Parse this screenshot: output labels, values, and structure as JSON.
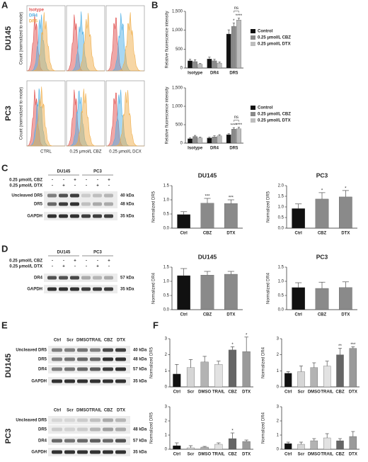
{
  "panel_labels": [
    "A",
    "B",
    "C",
    "D",
    "E",
    "F"
  ],
  "panel_a": {
    "legend": [
      "Isotype",
      "DR4",
      "DR5"
    ],
    "legend_colors": [
      "#e0504f",
      "#4fb0e6",
      "#f0ae4a"
    ],
    "ylabel": "Count (normalized to mode)",
    "conditions": [
      "CTRL",
      "0.25 μmol/L CBZ",
      "0.25 μmol/L DCX"
    ],
    "cell_lines": [
      "DU145",
      "PC3"
    ]
  },
  "panel_c": {
    "treatments": [
      "0.25 μmol/L CBZ",
      "0.25 μmol/L DTX"
    ],
    "signs": [
      [
        "-",
        "-",
        "+",
        "-",
        "-",
        "+"
      ],
      [
        "-",
        "+",
        "-",
        "-",
        "+",
        "-"
      ]
    ],
    "groups": [
      "DU145",
      "PC3"
    ],
    "rows": [
      {
        "label": "Uncleaved DR5",
        "size": "40 kDa"
      },
      {
        "label": "DR5",
        "size": "48 kDa"
      },
      {
        "label": "GAPDH",
        "size": "35 kDa"
      }
    ]
  },
  "panel_d": {
    "treatments": [
      "0.25 μmol/L CBZ",
      "0.25 μmol/L DTX"
    ],
    "signs": [
      [
        "-",
        "-",
        "+",
        "-",
        "-",
        "+"
      ],
      [
        "-",
        "+",
        "-",
        "-",
        "+",
        "-"
      ]
    ],
    "groups": [
      "DU145",
      "PC3"
    ],
    "rows": [
      {
        "label": "DR4",
        "size": "57 kDa"
      },
      {
        "label": "GAPDH",
        "size": "35 kDa"
      }
    ]
  },
  "panel_e": {
    "lanes": [
      "Ctrl",
      "Scr",
      "DMSO",
      "TRAIL",
      "CBZ",
      "DTX"
    ],
    "blots": [
      {
        "cell_line": "DU145",
        "rows": [
          {
            "label": "Uncleaved DR5",
            "size": "40 kDa"
          },
          {
            "label": "DR5",
            "size": "48 kDa"
          },
          {
            "label": "DR4",
            "size": "57 kDa"
          },
          {
            "label": "GAPDH",
            "size": "35 kDa"
          }
        ]
      },
      {
        "cell_line": "PC3",
        "rows": [
          {
            "label": "Uncleaved DR5",
            "size": null
          },
          {
            "label": "DR5",
            "size": "48 kDa"
          },
          {
            "label": "DR4",
            "size": "57 kDa"
          },
          {
            "label": "GAPDH",
            "size": "35 kDa"
          }
        ]
      }
    ]
  },
  "chart_data": [
    {
      "type": "bar",
      "ylabel": "Relative fluorescence intensity",
      "categories": [
        "Isotype",
        "DR4",
        "DR5"
      ],
      "series": [
        {
          "name": "Control",
          "color": "#111111",
          "values": [
            190,
            240,
            900
          ],
          "errors": [
            40,
            50,
            110
          ],
          "significance": [
            null,
            null,
            null
          ]
        },
        {
          "name": "0.25 μmol/L CBZ",
          "color": "#8a8a8a",
          "values": [
            170,
            190,
            1100
          ],
          "errors": [
            50,
            40,
            90
          ],
          "significance": [
            null,
            null,
            "*"
          ]
        },
        {
          "name": "0.25 μmol/L DTX",
          "color": "#bdbdbd",
          "values": [
            100,
            130,
            1270
          ],
          "errors": [
            20,
            30,
            50
          ],
          "significance": [
            null,
            null,
            "****"
          ]
        }
      ],
      "bracket_label": "ns",
      "ylim": [
        0,
        1500
      ],
      "yticks": [
        0,
        500,
        {
          "value": 1000,
          "label": "1,000"
        },
        {
          "value": 1500,
          "label": "1,500"
        }
      ]
    },
    {
      "type": "bar",
      "ylabel": "Relative fluorescence intensity",
      "categories": [
        "Isotype",
        "DR4",
        "DR5"
      ],
      "series": [
        {
          "name": "Control",
          "color": "#111111",
          "values": [
            120,
            140,
            230
          ],
          "errors": [
            20,
            20,
            25
          ],
          "significance": [
            null,
            null,
            null
          ]
        },
        {
          "name": "0.25 μmol/L CBZ",
          "color": "#8a8a8a",
          "values": [
            180,
            170,
            380
          ],
          "errors": [
            30,
            30,
            40
          ],
          "significance": [
            null,
            null,
            "****"
          ]
        },
        {
          "name": "0.25 μmol/L DTX",
          "color": "#bdbdbd",
          "values": [
            140,
            200,
            390
          ],
          "errors": [
            20,
            30,
            40
          ],
          "significance": [
            null,
            null,
            "****"
          ]
        }
      ],
      "bracket_label": "ns",
      "ylim": [
        0,
        1500
      ],
      "yticks": [
        0,
        500,
        {
          "value": 1000,
          "label": "1,000"
        },
        {
          "value": 1500,
          "label": "1,500"
        }
      ]
    },
    {
      "type": "bar",
      "title": "DU145",
      "ylabel": "Normalized DR5",
      "categories": [
        "Ctrl",
        "CBZ",
        "DTX"
      ],
      "values": [
        0.48,
        0.88,
        0.87
      ],
      "errors": [
        0.1,
        0.17,
        0.13
      ],
      "significance": [
        null,
        "***",
        "***"
      ],
      "colors": [
        "#111111",
        "#8a8a8a",
        "#8a8a8a"
      ],
      "ylim": [
        0,
        1.5
      ],
      "yticks": [
        {
          "value": 0,
          "label": "0.0"
        },
        0.5,
        {
          "value": 1,
          "label": "1.0"
        },
        1.5
      ]
    },
    {
      "type": "bar",
      "title": "PC3",
      "ylabel": "Normalized DR5",
      "categories": [
        "Ctrl",
        "CBZ",
        "DTX"
      ],
      "values": [
        0.92,
        1.37,
        1.47
      ],
      "errors": [
        0.22,
        0.3,
        0.3
      ],
      "significance": [
        null,
        "*",
        "*"
      ],
      "colors": [
        "#111111",
        "#8a8a8a",
        "#8a8a8a"
      ],
      "ylim": [
        0,
        2
      ],
      "yticks": [
        {
          "value": 0,
          "label": "0.0"
        },
        0.5,
        {
          "value": 1,
          "label": "1.0"
        },
        1.5,
        {
          "value": 2,
          "label": "2.0"
        }
      ]
    },
    {
      "type": "bar",
      "title": "DU145",
      "ylabel": "Normalized DR4",
      "categories": [
        "Ctrl",
        "CBZ",
        "DTX"
      ],
      "values": [
        1.2,
        1.22,
        1.25
      ],
      "errors": [
        0.25,
        0.13,
        0.1
      ],
      "significance": [
        null,
        null,
        null
      ],
      "colors": [
        "#111111",
        "#8a8a8a",
        "#8a8a8a"
      ],
      "ylim": [
        0,
        1.5
      ],
      "yticks": [
        {
          "value": 0,
          "label": "0.0"
        },
        0.5,
        {
          "value": 1,
          "label": "1.0"
        },
        1.5
      ]
    },
    {
      "type": "bar",
      "title": "PC3",
      "ylabel": "Normalized DR4",
      "categories": [
        "Ctrl",
        "CBZ",
        "DTX"
      ],
      "values": [
        0.78,
        0.75,
        0.78
      ],
      "errors": [
        0.17,
        0.22,
        0.2
      ],
      "significance": [
        null,
        null,
        null
      ],
      "colors": [
        "#111111",
        "#8a8a8a",
        "#8a8a8a"
      ],
      "ylim": [
        0,
        1.5
      ],
      "yticks": [
        {
          "value": 0,
          "label": "0.0"
        },
        0.5,
        {
          "value": 1,
          "label": "1.0"
        },
        1.5
      ]
    },
    {
      "type": "bar",
      "ylabel": "Normalized DR5",
      "categories": [
        "Ctrl",
        "Scr",
        "DMSO",
        "TRAIL",
        "CBZ",
        "DTX"
      ],
      "values": [
        0.8,
        1.2,
        1.55,
        1.4,
        2.3,
        2.2
      ],
      "errors": [
        0.6,
        0.5,
        0.35,
        0.2,
        0.2,
        0.9
      ],
      "significance": [
        null,
        null,
        null,
        null,
        "*",
        "*"
      ],
      "colors": [
        "#111111",
        "#d6d6d6",
        "#b3b3b3",
        "#e2e2e2",
        "#666666",
        "#9a9a9a"
      ],
      "ylim": [
        0,
        3
      ],
      "yticks": [
        0,
        1,
        2,
        3
      ]
    },
    {
      "type": "bar",
      "ylabel": "Normalized DR4",
      "categories": [
        "Ctrl",
        "Scr",
        "DMSO",
        "TRAIL",
        "CBZ",
        "DTX"
      ],
      "values": [
        0.85,
        0.95,
        1.2,
        1.3,
        2.0,
        2.4
      ],
      "errors": [
        0.1,
        0.35,
        0.3,
        0.3,
        0.4,
        0.1
      ],
      "significance": [
        null,
        null,
        null,
        null,
        "**",
        "***"
      ],
      "colors": [
        "#111111",
        "#d6d6d6",
        "#b3b3b3",
        "#e2e2e2",
        "#666666",
        "#9a9a9a"
      ],
      "ylim": [
        0,
        3
      ],
      "yticks": [
        0,
        1,
        2,
        3
      ]
    },
    {
      "type": "bar",
      "ylabel": "Normalized DR5",
      "categories": [
        "Ctrl",
        "Scr",
        "DMSO",
        "TRAIL",
        "CBZ",
        "DTX"
      ],
      "values": [
        0.25,
        0.1,
        0.15,
        0.35,
        0.75,
        0.55
      ],
      "errors": [
        0.2,
        0.15,
        0.05,
        0.1,
        0.4,
        0.1
      ],
      "significance": [
        null,
        null,
        null,
        null,
        "*",
        null
      ],
      "colors": [
        "#111111",
        "#d6d6d6",
        "#b3b3b3",
        "#e2e2e2",
        "#666666",
        "#9a9a9a"
      ],
      "ylim": [
        0,
        3
      ],
      "yticks": [
        0,
        1,
        2,
        3
      ]
    },
    {
      "type": "bar",
      "ylabel": "Normalized DR4",
      "categories": [
        "Ctrl",
        "Scr",
        "DMSO",
        "TRAIL",
        "CBZ",
        "DTX"
      ],
      "values": [
        0.4,
        0.35,
        0.6,
        0.8,
        0.6,
        0.9
      ],
      "errors": [
        0.1,
        0.15,
        0.15,
        0.3,
        0.15,
        0.35
      ],
      "significance": [
        null,
        null,
        null,
        null,
        null,
        null
      ],
      "colors": [
        "#111111",
        "#d6d6d6",
        "#b3b3b3",
        "#e2e2e2",
        "#666666",
        "#9a9a9a"
      ],
      "ylim": [
        0,
        3
      ],
      "yticks": [
        0,
        1,
        2,
        3
      ]
    }
  ]
}
